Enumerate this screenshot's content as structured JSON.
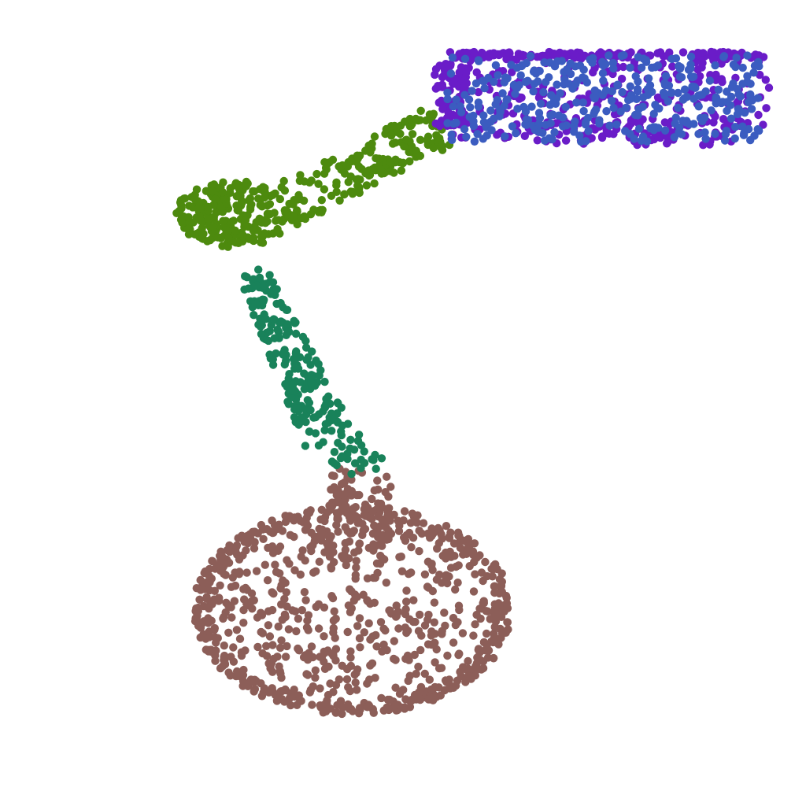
{
  "figure": {
    "kind": "point-cloud-part-segmentation",
    "object": "lamp",
    "background": "#ffffff",
    "parts": [
      {
        "id": "base",
        "color": "#8c5e58",
        "points": 950
      },
      {
        "id": "lower-arm",
        "color": "#19825a",
        "points": 220
      },
      {
        "id": "upper-arm",
        "color": "#4d8a0e",
        "points": 420
      },
      {
        "id": "shade-outer",
        "color": "#6a1cc8",
        "points": 560
      },
      {
        "id": "shade-inner",
        "color": "#3b5cc0",
        "points": 360
      }
    ]
  }
}
